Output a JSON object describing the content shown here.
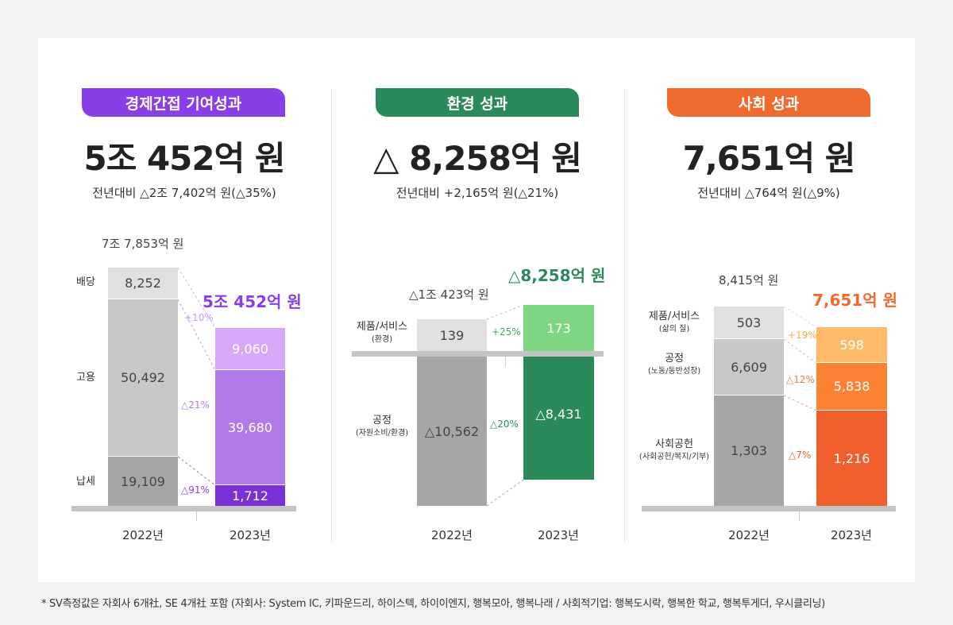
{
  "colors": {
    "economic": "#8a3ee8",
    "environment": "#2b8a5a",
    "social": "#f06a2e"
  },
  "chart_data": [
    {
      "type": "bar",
      "stacked": true,
      "badge": "경제간접 기여성과",
      "headline": "5조 452억 원",
      "comparison": "전년대비 △2조 7,402억 원(△35%)",
      "categories": [
        "2022년",
        "2023년"
      ],
      "totals": [
        "7조 7,853억 원",
        "5조 452억 원"
      ],
      "series": [
        {
          "name": "배당",
          "values": [
            8252,
            9060
          ],
          "labels": [
            "8,252",
            "9,060"
          ],
          "change": "+10%"
        },
        {
          "name": "고용",
          "values": [
            50492,
            39680
          ],
          "labels": [
            "50,492",
            "39,680"
          ],
          "change": "△21%"
        },
        {
          "name": "납세",
          "values": [
            19109,
            1712
          ],
          "labels": [
            "19,109",
            "1,712"
          ],
          "change": "△91%"
        }
      ]
    },
    {
      "type": "bar",
      "stacked": true,
      "badge": "환경 성과",
      "headline": "△ 8,258억 원",
      "comparison": "전년대비 +2,165억 원(△21%)",
      "categories": [
        "2022년",
        "2023년"
      ],
      "totals": [
        "△1조 423억 원",
        "△8,258억 원"
      ],
      "series": [
        {
          "name": "제품/서비스",
          "sub": "(환경)",
          "values": [
            139,
            173
          ],
          "labels": [
            "139",
            "173"
          ],
          "change": "+25%"
        },
        {
          "name": "공정",
          "sub": "(자원소비/환경)",
          "values": [
            -10562,
            -8431
          ],
          "labels": [
            "△10,562",
            "△8,431"
          ],
          "change": "△20%"
        }
      ]
    },
    {
      "type": "bar",
      "stacked": true,
      "badge": "사회 성과",
      "headline": "7,651억 원",
      "comparison": "전년대비 △764억 원(△9%)",
      "categories": [
        "2022년",
        "2023년"
      ],
      "totals": [
        "8,415억 원",
        "7,651억 원"
      ],
      "series": [
        {
          "name": "제품/서비스",
          "sub": "(삶의 질)",
          "values": [
            503,
            598
          ],
          "labels": [
            "503",
            "598"
          ],
          "change": "+19%"
        },
        {
          "name": "공정",
          "sub": "(노동/동반성장)",
          "values": [
            6609,
            5838
          ],
          "labels": [
            "6,609",
            "5,838"
          ],
          "change": "△12%"
        },
        {
          "name": "사회공헌",
          "sub": "(사회공헌/복지/기부)",
          "values": [
            1303,
            1216
          ],
          "labels": [
            "1,303",
            "1,216"
          ],
          "change": "△7%"
        }
      ]
    }
  ],
  "footnote": "* SV측정값은 자회사 6개社, SE 4개社 포함 (자회사: System IC, 키파운드리, 하이스텍, 하이이엔지, 행복모아, 행복나래 / 사회적기업: 행복도시락, 행복한 학교, 행복투게더, 우시클리닝)"
}
